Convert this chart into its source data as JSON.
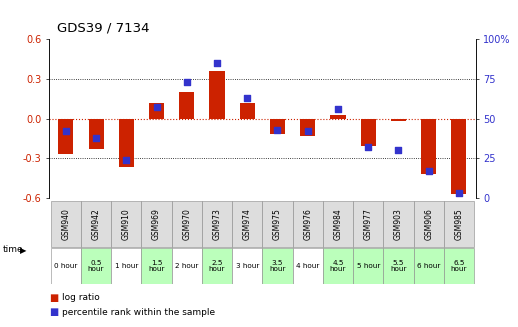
{
  "title": "GDS39 / 7134",
  "gsm_labels": [
    "GSM940",
    "GSM942",
    "GSM910",
    "GSM969",
    "GSM970",
    "GSM973",
    "GSM974",
    "GSM975",
    "GSM976",
    "GSM984",
    "GSM977",
    "GSM903",
    "GSM906",
    "GSM985"
  ],
  "time_labels": [
    "0 hour",
    "0.5\nhour",
    "1 hour",
    "1.5\nhour",
    "2 hour",
    "2.5\nhour",
    "3 hour",
    "3.5\nhour",
    "4 hour",
    "4.5\nhour",
    "5 hour",
    "5.5\nhour",
    "6 hour",
    "6.5\nhour"
  ],
  "time_bg": [
    "#ffffff",
    "#bbffbb",
    "#ffffff",
    "#bbffbb",
    "#ffffff",
    "#bbffbb",
    "#ffffff",
    "#bbffbb",
    "#ffffff",
    "#bbffbb",
    "#bbffbb",
    "#bbffbb",
    "#bbffbb",
    "#bbffbb"
  ],
  "log_ratio": [
    -0.27,
    -0.23,
    -0.37,
    0.12,
    0.2,
    0.36,
    0.12,
    -0.12,
    -0.13,
    0.03,
    -0.21,
    -0.02,
    -0.42,
    -0.57
  ],
  "percentile": [
    42,
    38,
    24,
    57,
    73,
    85,
    63,
    43,
    42,
    56,
    32,
    30,
    17,
    3
  ],
  "ylim_left": [
    -0.6,
    0.6
  ],
  "ylim_right": [
    0,
    100
  ],
  "yticks_left": [
    -0.6,
    -0.3,
    0.0,
    0.3,
    0.6
  ],
  "yticks_right": [
    0,
    25,
    50,
    75,
    100
  ],
  "bar_color": "#cc2200",
  "dot_color": "#3333cc",
  "zero_line_color": "#cc2200",
  "left_axis_color": "#cc2200",
  "right_axis_color": "#3333cc",
  "tick_fontsize": 7,
  "gsm_fontsize": 5.5,
  "time_fontsize": 5.2,
  "bar_width": 0.5
}
